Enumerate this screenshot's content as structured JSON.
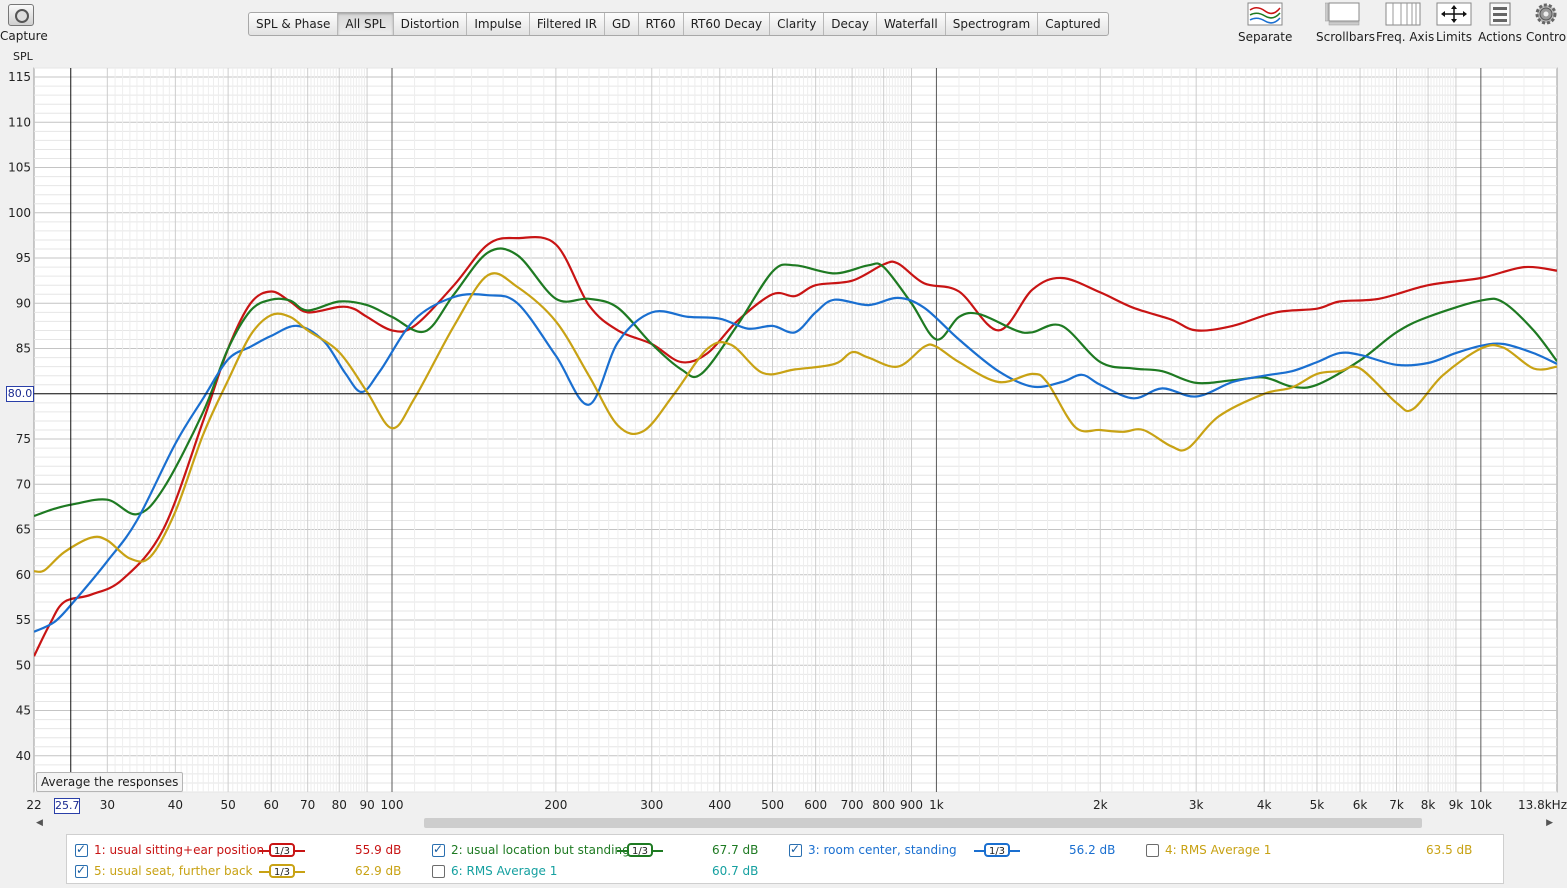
{
  "toolbar": {
    "capture_label": "Capture",
    "tabs": [
      "SPL & Phase",
      "All SPL",
      "Distortion",
      "Impulse",
      "Filtered IR",
      "GD",
      "RT60",
      "RT60 Decay",
      "Clarity",
      "Decay",
      "Waterfall",
      "Spectrogram",
      "Captured"
    ],
    "active_tab": "All SPL",
    "right_buttons": [
      {
        "label": "Separate",
        "icon": "separate-icon"
      },
      {
        "label": "Scrollbars",
        "icon": "scrollbars-icon"
      },
      {
        "label": "Freq. Axis",
        "icon": "freq-axis-icon"
      },
      {
        "label": "Limits",
        "icon": "limits-icon"
      },
      {
        "label": "Actions",
        "icon": "actions-icon"
      },
      {
        "label": "Controls",
        "icon": "gear-icon"
      }
    ]
  },
  "chart": {
    "ylabel": "SPL",
    "cursor_y": "80.0",
    "cursor_x": "25.7",
    "average_button": "Average the responses"
  },
  "chart_data": {
    "type": "line",
    "xscale": "log",
    "xlim": [
      22,
      13800
    ],
    "ylim": [
      36,
      116
    ],
    "ylabel": "SPL",
    "y_ticks": [
      40,
      45,
      50,
      55,
      60,
      65,
      70,
      75,
      80,
      85,
      90,
      95,
      100,
      105,
      110,
      115
    ],
    "x_ticks": [
      {
        "v": 22,
        "label": "22"
      },
      {
        "v": 30,
        "label": "30"
      },
      {
        "v": 40,
        "label": "40"
      },
      {
        "v": 50,
        "label": "50"
      },
      {
        "v": 60,
        "label": "60"
      },
      {
        "v": 70,
        "label": "70"
      },
      {
        "v": 80,
        "label": "80"
      },
      {
        "v": 90,
        "label": "90"
      },
      {
        "v": 100,
        "label": "100"
      },
      {
        "v": 200,
        "label": "200"
      },
      {
        "v": 300,
        "label": "300"
      },
      {
        "v": 400,
        "label": "400"
      },
      {
        "v": 500,
        "label": "500"
      },
      {
        "v": 600,
        "label": "600"
      },
      {
        "v": 700,
        "label": "700"
      },
      {
        "v": 800,
        "label": "800"
      },
      {
        "v": 900,
        "label": "900"
      },
      {
        "v": 1000,
        "label": "1k"
      },
      {
        "v": 2000,
        "label": "2k"
      },
      {
        "v": 3000,
        "label": "3k"
      },
      {
        "v": 4000,
        "label": "4k"
      },
      {
        "v": 5000,
        "label": "5k"
      },
      {
        "v": 6000,
        "label": "6k"
      },
      {
        "v": 7000,
        "label": "7k"
      },
      {
        "v": 8000,
        "label": "8k"
      },
      {
        "v": 9000,
        "label": "9k"
      },
      {
        "v": 10000,
        "label": "10k"
      },
      {
        "v": 13800,
        "label": "13.8kHz"
      }
    ],
    "grid": true,
    "series": [
      {
        "name": "1: usual sitting+ear position",
        "color": "#c81414",
        "points": [
          [
            22,
            51
          ],
          [
            23.5,
            54.5
          ],
          [
            25,
            57
          ],
          [
            28,
            57.8
          ],
          [
            32,
            59.5
          ],
          [
            38,
            65
          ],
          [
            45,
            77
          ],
          [
            50,
            85
          ],
          [
            55,
            90
          ],
          [
            60,
            91.3
          ],
          [
            65,
            90.2
          ],
          [
            70,
            89
          ],
          [
            80,
            89.6
          ],
          [
            85,
            89.4
          ],
          [
            90,
            88.5
          ],
          [
            100,
            87
          ],
          [
            110,
            87.5
          ],
          [
            130,
            92
          ],
          [
            150,
            96.5
          ],
          [
            170,
            97.2
          ],
          [
            200,
            96.5
          ],
          [
            230,
            89.8
          ],
          [
            260,
            87
          ],
          [
            300,
            85.5
          ],
          [
            340,
            83.5
          ],
          [
            380,
            84.5
          ],
          [
            430,
            88
          ],
          [
            500,
            91
          ],
          [
            550,
            90.8
          ],
          [
            600,
            92
          ],
          [
            700,
            92.5
          ],
          [
            800,
            94.3
          ],
          [
            850,
            94.4
          ],
          [
            950,
            92.2
          ],
          [
            1100,
            91.3
          ],
          [
            1300,
            87
          ],
          [
            1500,
            91.5
          ],
          [
            1700,
            92.8
          ],
          [
            2000,
            91.2
          ],
          [
            2300,
            89.5
          ],
          [
            2700,
            88.2
          ],
          [
            3000,
            87
          ],
          [
            3500,
            87.5
          ],
          [
            4200,
            89
          ],
          [
            5000,
            89.4
          ],
          [
            5500,
            90.2
          ],
          [
            6500,
            90.5
          ],
          [
            8000,
            92
          ],
          [
            10000,
            92.8
          ],
          [
            12000,
            94
          ],
          [
            13800,
            93.6
          ]
        ]
      },
      {
        "name": "2: usual location but standing",
        "color": "#1e7a22",
        "points": [
          [
            22,
            66.5
          ],
          [
            24,
            67.3
          ],
          [
            26,
            67.8
          ],
          [
            30,
            68.3
          ],
          [
            34,
            66.7
          ],
          [
            38,
            69.5
          ],
          [
            45,
            78
          ],
          [
            50,
            85
          ],
          [
            55,
            89.2
          ],
          [
            60,
            90.4
          ],
          [
            65,
            90.3
          ],
          [
            70,
            89.2
          ],
          [
            80,
            90.2
          ],
          [
            90,
            89.8
          ],
          [
            100,
            88.5
          ],
          [
            115,
            86.9
          ],
          [
            130,
            91
          ],
          [
            150,
            95.6
          ],
          [
            170,
            95.3
          ],
          [
            200,
            90.5
          ],
          [
            230,
            90.5
          ],
          [
            260,
            89.5
          ],
          [
            300,
            85.5
          ],
          [
            340,
            82.7
          ],
          [
            370,
            82.2
          ],
          [
            430,
            87.5
          ],
          [
            500,
            93.5
          ],
          [
            550,
            94.2
          ],
          [
            650,
            93.3
          ],
          [
            750,
            94.2
          ],
          [
            800,
            94
          ],
          [
            900,
            90
          ],
          [
            1000,
            86
          ],
          [
            1100,
            88.5
          ],
          [
            1200,
            88.8
          ],
          [
            1400,
            87
          ],
          [
            1500,
            86.8
          ],
          [
            1700,
            87.5
          ],
          [
            2000,
            83.5
          ],
          [
            2300,
            82.8
          ],
          [
            2600,
            82.5
          ],
          [
            3000,
            81.2
          ],
          [
            3500,
            81.5
          ],
          [
            4000,
            81.8
          ],
          [
            4500,
            80.8
          ],
          [
            5000,
            81
          ],
          [
            6000,
            83.7
          ],
          [
            7000,
            86.8
          ],
          [
            8000,
            88.5
          ],
          [
            10000,
            90.3
          ],
          [
            11000,
            90.1
          ],
          [
            12500,
            87
          ],
          [
            13800,
            83.6
          ]
        ]
      },
      {
        "name": "3: room center, standing",
        "color": "#1a6fd0",
        "points": [
          [
            22,
            53.7
          ],
          [
            24,
            54.8
          ],
          [
            26,
            57
          ],
          [
            30,
            61.5
          ],
          [
            34,
            66
          ],
          [
            40,
            74.5
          ],
          [
            45,
            79.5
          ],
          [
            50,
            83.8
          ],
          [
            55,
            85.2
          ],
          [
            60,
            86.4
          ],
          [
            67,
            87.5
          ],
          [
            75,
            85.8
          ],
          [
            82,
            82.3
          ],
          [
            88,
            80.2
          ],
          [
            95,
            82.5
          ],
          [
            110,
            88.2
          ],
          [
            130,
            90.7
          ],
          [
            150,
            90.9
          ],
          [
            170,
            90
          ],
          [
            200,
            84.2
          ],
          [
            230,
            78.8
          ],
          [
            260,
            85.7
          ],
          [
            300,
            89
          ],
          [
            350,
            88.5
          ],
          [
            400,
            88.3
          ],
          [
            450,
            87.2
          ],
          [
            500,
            87.5
          ],
          [
            550,
            86.8
          ],
          [
            600,
            89
          ],
          [
            650,
            90.4
          ],
          [
            750,
            89.8
          ],
          [
            850,
            90.6
          ],
          [
            950,
            89.5
          ],
          [
            1100,
            86
          ],
          [
            1300,
            82.5
          ],
          [
            1500,
            80.8
          ],
          [
            1700,
            81.3
          ],
          [
            1850,
            82.1
          ],
          [
            2000,
            81
          ],
          [
            2300,
            79.5
          ],
          [
            2600,
            80.6
          ],
          [
            3000,
            79.7
          ],
          [
            3500,
            81.3
          ],
          [
            4000,
            82
          ],
          [
            4500,
            82.5
          ],
          [
            5000,
            83.5
          ],
          [
            5500,
            84.5
          ],
          [
            6000,
            84.3
          ],
          [
            7000,
            83.2
          ],
          [
            8000,
            83.4
          ],
          [
            9000,
            84.5
          ],
          [
            10000,
            85.3
          ],
          [
            11000,
            85.5
          ],
          [
            12500,
            84.5
          ],
          [
            13800,
            83.3
          ]
        ]
      },
      {
        "name": "5: usual seat, further back",
        "color": "#c8a214",
        "points": [
          [
            22,
            60.4
          ],
          [
            23,
            60.5
          ],
          [
            25,
            62.5
          ],
          [
            28,
            64.1
          ],
          [
            30,
            63.8
          ],
          [
            33,
            61.8
          ],
          [
            36,
            62
          ],
          [
            40,
            67
          ],
          [
            45,
            75.5
          ],
          [
            50,
            81.5
          ],
          [
            55,
            86.5
          ],
          [
            60,
            88.7
          ],
          [
            65,
            88.5
          ],
          [
            70,
            87
          ],
          [
            80,
            84.6
          ],
          [
            90,
            80.2
          ],
          [
            100,
            76.2
          ],
          [
            110,
            79.5
          ],
          [
            130,
            87.5
          ],
          [
            150,
            93.1
          ],
          [
            170,
            91.8
          ],
          [
            200,
            88
          ],
          [
            230,
            82
          ],
          [
            260,
            76.5
          ],
          [
            290,
            75.9
          ],
          [
            330,
            80
          ],
          [
            380,
            85
          ],
          [
            420,
            85.4
          ],
          [
            480,
            82.3
          ],
          [
            550,
            82.7
          ],
          [
            650,
            83.3
          ],
          [
            700,
            84.6
          ],
          [
            750,
            84
          ],
          [
            850,
            83
          ],
          [
            950,
            85.2
          ],
          [
            1000,
            85.2
          ],
          [
            1100,
            83.5
          ],
          [
            1300,
            81.3
          ],
          [
            1500,
            82.2
          ],
          [
            1600,
            81.2
          ],
          [
            1800,
            76.3
          ],
          [
            2000,
            76
          ],
          [
            2200,
            75.8
          ],
          [
            2400,
            76
          ],
          [
            2700,
            74.2
          ],
          [
            2900,
            74
          ],
          [
            3300,
            77.5
          ],
          [
            4000,
            80
          ],
          [
            4500,
            80.7
          ],
          [
            5000,
            82.2
          ],
          [
            5500,
            82.5
          ],
          [
            6000,
            82.8
          ],
          [
            7000,
            79
          ],
          [
            7500,
            78.3
          ],
          [
            8500,
            82
          ],
          [
            10000,
            85
          ],
          [
            11000,
            85.1
          ],
          [
            12500,
            82.8
          ],
          [
            13800,
            83
          ]
        ]
      }
    ]
  },
  "legend": {
    "items": [
      {
        "label": "1: usual sitting+ear position",
        "checked": true,
        "smoothing": "1/3",
        "db": "55.9 dB",
        "color": "#c81414"
      },
      {
        "label": "2: usual location but standing",
        "checked": true,
        "smoothing": "1/3",
        "db": "67.7 dB",
        "color": "#1e7a22"
      },
      {
        "label": "3: room center, standing",
        "checked": true,
        "smoothing": "1/3",
        "db": "56.2 dB",
        "color": "#1a6fd0"
      },
      {
        "label": "4: RMS Average 1",
        "checked": false,
        "smoothing": "",
        "db": "63.5 dB",
        "color": "#c8a214"
      },
      {
        "label": "5: usual seat, further back",
        "checked": true,
        "smoothing": "1/3",
        "db": "62.9 dB",
        "color": "#c8a214"
      },
      {
        "label": "6: RMS Average 1",
        "checked": false,
        "smoothing": "",
        "db": "60.7 dB",
        "color": "#15a0a0"
      }
    ]
  }
}
